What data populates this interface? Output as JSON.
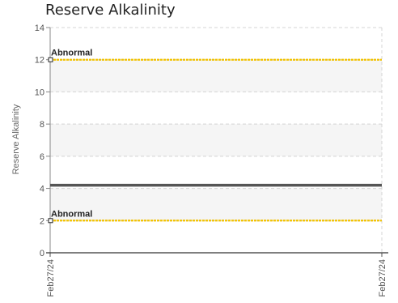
{
  "chart_data": {
    "type": "line",
    "title": "Reserve Alkalinity",
    "ylabel": "Reserve Alkalinity",
    "xlabel": "",
    "ylim": [
      0,
      14
    ],
    "yticks": [
      0,
      2,
      4,
      6,
      8,
      10,
      12,
      14
    ],
    "x_categories": [
      "Feb27/24",
      "Feb27/24"
    ],
    "grid": true,
    "series": [
      {
        "values": [
          4.2,
          4.2
        ],
        "color": "#555555"
      }
    ],
    "thresholds": [
      {
        "label": "Abnormal",
        "value": 12,
        "color": "#F2C200"
      },
      {
        "label": "Abnormal",
        "value": 2,
        "color": "#F2C200"
      }
    ],
    "bands": [
      [
        10,
        12
      ],
      [
        6,
        8
      ],
      [
        2,
        4
      ]
    ]
  }
}
